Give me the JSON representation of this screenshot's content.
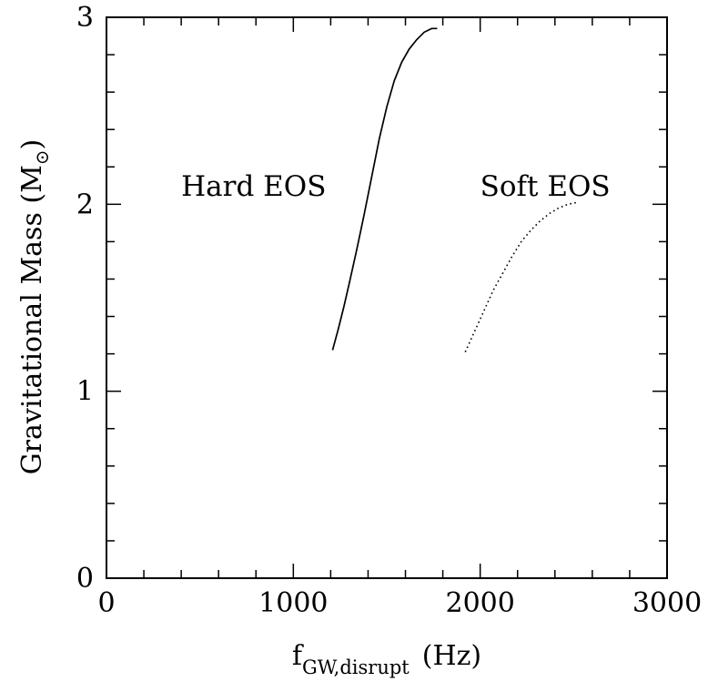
{
  "chart_data": {
    "type": "line",
    "xlabel_main": "f",
    "xlabel_sub": "GW,disrupt",
    "xlabel_unit": "(Hz)",
    "ylabel_main": "Gravitational Mass (M",
    "ylabel_sub": "⊙",
    "ylabel_close": ")",
    "xlim": [
      0,
      3000
    ],
    "ylim": [
      0,
      3
    ],
    "x_ticks": [
      "0",
      "1000",
      "2000",
      "3000"
    ],
    "y_ticks": [
      "0",
      "1",
      "2",
      "3"
    ],
    "grid": false,
    "annotations": [
      {
        "text": "Hard EOS",
        "x": 400,
        "y": 2.1
      },
      {
        "text": "Soft EOS",
        "x": 2000,
        "y": 2.1
      }
    ],
    "series": [
      {
        "style": "solid",
        "points": [
          [
            1210,
            1.22
          ],
          [
            1240,
            1.33
          ],
          [
            1270,
            1.45
          ],
          [
            1300,
            1.58
          ],
          [
            1340,
            1.76
          ],
          [
            1380,
            1.95
          ],
          [
            1420,
            2.15
          ],
          [
            1460,
            2.35
          ],
          [
            1500,
            2.52
          ],
          [
            1540,
            2.66
          ],
          [
            1580,
            2.76
          ],
          [
            1620,
            2.83
          ],
          [
            1660,
            2.88
          ],
          [
            1700,
            2.92
          ],
          [
            1740,
            2.94
          ],
          [
            1770,
            2.94
          ]
        ]
      },
      {
        "style": "dotted",
        "points": [
          [
            1920,
            1.21
          ],
          [
            1970,
            1.32
          ],
          [
            2020,
            1.43
          ],
          [
            2070,
            1.54
          ],
          [
            2120,
            1.63
          ],
          [
            2170,
            1.72
          ],
          [
            2220,
            1.8
          ],
          [
            2270,
            1.86
          ],
          [
            2320,
            1.91
          ],
          [
            2370,
            1.95
          ],
          [
            2420,
            1.98
          ],
          [
            2470,
            2.0
          ],
          [
            2520,
            2.01
          ]
        ]
      }
    ]
  }
}
